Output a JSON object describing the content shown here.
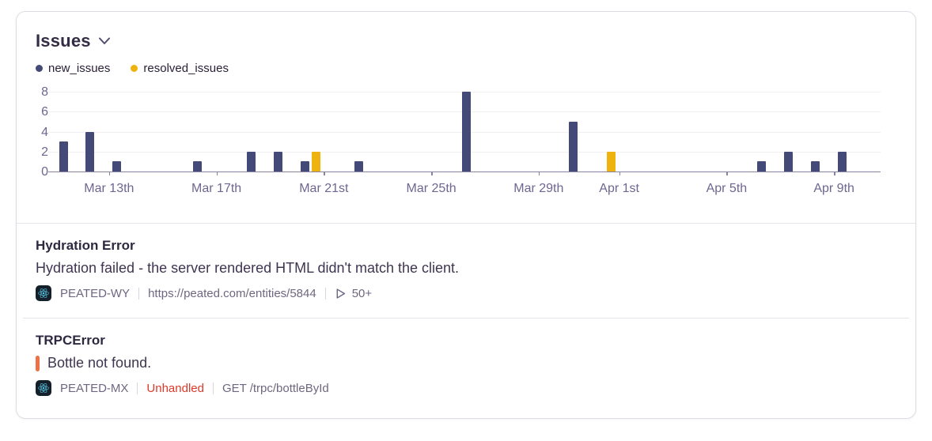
{
  "header": {
    "title": "Issues"
  },
  "legend": [
    {
      "label": "new_issues"
    },
    {
      "label": "resolved_issues"
    }
  ],
  "colors": {
    "new_issues": "#444a78",
    "resolved_issues": "#efb310",
    "unhandled_red": "#dc3a2a",
    "message_marker_orange": "#ef7046",
    "react_icon_cyan": "#58c5e2",
    "axis_text": "#6f6691",
    "axis_line": "#8982a0"
  },
  "chart_data": {
    "type": "bar",
    "title": "Issues",
    "categories": [
      "Mar 11",
      "Mar 12",
      "Mar 13",
      "Mar 14",
      "Mar 15",
      "Mar 16",
      "Mar 17",
      "Mar 18",
      "Mar 19",
      "Mar 20",
      "Mar 21",
      "Mar 22",
      "Mar 23",
      "Mar 24",
      "Mar 25",
      "Mar 26",
      "Mar 27",
      "Mar 28",
      "Mar 29",
      "Mar 30",
      "Mar 31",
      "Apr 1",
      "Apr 2",
      "Apr 3",
      "Apr 4",
      "Apr 5",
      "Apr 6",
      "Apr 7",
      "Apr 8",
      "Apr 9",
      "Apr 10"
    ],
    "series": [
      {
        "name": "new_issues",
        "color": "#444a78",
        "values": [
          3,
          4,
          1,
          0,
          0,
          1,
          0,
          2,
          2,
          1,
          0,
          1,
          0,
          0,
          0,
          8,
          0,
          0,
          0,
          5,
          0,
          0,
          0,
          0,
          0,
          0,
          1,
          2,
          1,
          2,
          0
        ]
      },
      {
        "name": "resolved_issues",
        "color": "#efb310",
        "values": [
          0,
          0,
          0,
          0,
          0,
          0,
          0,
          0,
          0,
          2,
          0,
          0,
          0,
          0,
          0,
          0,
          0,
          0,
          0,
          0,
          2,
          0,
          0,
          0,
          0,
          0,
          0,
          0,
          0,
          0,
          0
        ]
      }
    ],
    "ylim": [
      0,
      8
    ],
    "y_ticks": [
      0,
      2,
      4,
      6,
      8
    ],
    "x_ticks": [
      {
        "label": "Mar 13th",
        "index": 2
      },
      {
        "label": "Mar 17th",
        "index": 6
      },
      {
        "label": "Mar 21st",
        "index": 10
      },
      {
        "label": "Mar 25th",
        "index": 14
      },
      {
        "label": "Mar 29th",
        "index": 18
      },
      {
        "label": "Apr 1st",
        "index": 21
      },
      {
        "label": "Apr 5th",
        "index": 25
      },
      {
        "label": "Apr 9th",
        "index": 29
      }
    ],
    "legend_position": "top",
    "grid": "horizontal-faint"
  },
  "issues": [
    {
      "title": "Hydration Error",
      "message": "Hydration failed - the server rendered HTML didn't match the client.",
      "project": "PEATED-WY",
      "link": "https://peated.com/entities/5844",
      "replay_count": "50+"
    },
    {
      "title": "TRPCError",
      "message": "Bottle not found.",
      "project": "PEATED-MX",
      "handled_status": "Unhandled",
      "culprit": "GET /trpc/bottleById"
    }
  ]
}
